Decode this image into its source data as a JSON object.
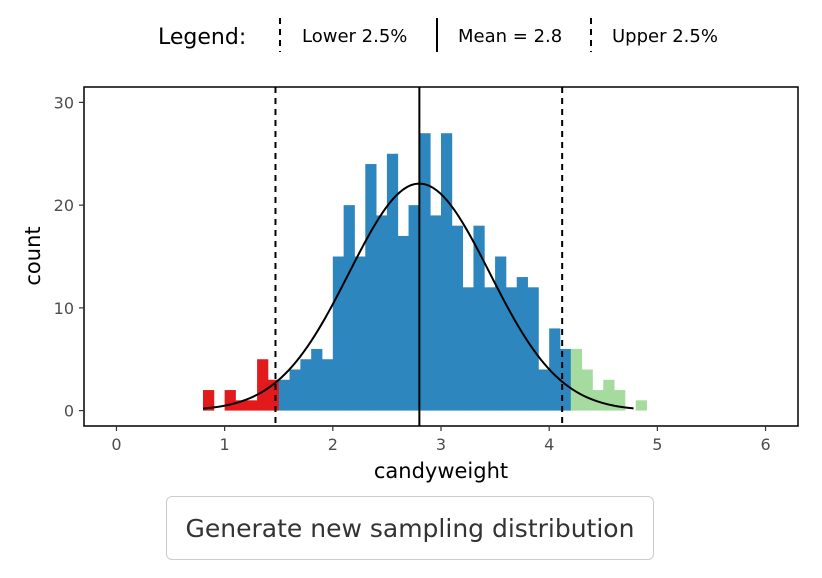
{
  "legend": {
    "title": "Legend:",
    "items": [
      {
        "label": "Lower 2.5%",
        "style": "dashed"
      },
      {
        "label": "Mean = 2.8",
        "style": "solid"
      },
      {
        "label": "Upper 2.5%",
        "style": "dashed"
      }
    ]
  },
  "button": {
    "label": "Generate new sampling distribution"
  },
  "colors": {
    "lower_tail": "#e31a1c",
    "middle": "#2e86bf",
    "upper_tail": "#a6dba0",
    "curve": "#000000"
  },
  "chart_data": {
    "type": "bar",
    "title": "",
    "xlabel": "candyweight",
    "ylabel": "count",
    "xlim": [
      -0.3,
      6.3
    ],
    "ylim": [
      -1.5,
      31.5
    ],
    "xticks": [
      0,
      1,
      2,
      3,
      4,
      5,
      6
    ],
    "yticks": [
      0,
      10,
      20,
      30
    ],
    "bin_width": 0.1,
    "bins": [
      {
        "x": 0.8,
        "count": 2,
        "group": "lower"
      },
      {
        "x": 0.9,
        "count": 0,
        "group": "lower"
      },
      {
        "x": 1.0,
        "count": 2,
        "group": "lower"
      },
      {
        "x": 1.1,
        "count": 1,
        "group": "lower"
      },
      {
        "x": 1.2,
        "count": 1,
        "group": "lower"
      },
      {
        "x": 1.3,
        "count": 5,
        "group": "lower"
      },
      {
        "x": 1.4,
        "count": 3,
        "group": "lower"
      },
      {
        "x": 1.5,
        "count": 3,
        "group": "middle"
      },
      {
        "x": 1.6,
        "count": 4,
        "group": "middle"
      },
      {
        "x": 1.7,
        "count": 5,
        "group": "middle"
      },
      {
        "x": 1.8,
        "count": 6,
        "group": "middle"
      },
      {
        "x": 1.9,
        "count": 5,
        "group": "middle"
      },
      {
        "x": 2.0,
        "count": 15,
        "group": "middle"
      },
      {
        "x": 2.1,
        "count": 20,
        "group": "middle"
      },
      {
        "x": 2.2,
        "count": 15,
        "group": "middle"
      },
      {
        "x": 2.3,
        "count": 24,
        "group": "middle"
      },
      {
        "x": 2.4,
        "count": 19,
        "group": "middle"
      },
      {
        "x": 2.5,
        "count": 25,
        "group": "middle"
      },
      {
        "x": 2.6,
        "count": 17,
        "group": "middle"
      },
      {
        "x": 2.7,
        "count": 20,
        "group": "middle"
      },
      {
        "x": 2.8,
        "count": 27,
        "group": "middle"
      },
      {
        "x": 2.9,
        "count": 19,
        "group": "middle"
      },
      {
        "x": 3.0,
        "count": 27,
        "group": "middle"
      },
      {
        "x": 3.1,
        "count": 18,
        "group": "middle"
      },
      {
        "x": 3.2,
        "count": 12,
        "group": "middle"
      },
      {
        "x": 3.3,
        "count": 18,
        "group": "middle"
      },
      {
        "x": 3.4,
        "count": 12,
        "group": "middle"
      },
      {
        "x": 3.5,
        "count": 15,
        "group": "middle"
      },
      {
        "x": 3.6,
        "count": 12,
        "group": "middle"
      },
      {
        "x": 3.7,
        "count": 13,
        "group": "middle"
      },
      {
        "x": 3.8,
        "count": 12,
        "group": "middle"
      },
      {
        "x": 3.9,
        "count": 4,
        "group": "middle"
      },
      {
        "x": 4.0,
        "count": 8,
        "group": "middle"
      },
      {
        "x": 4.1,
        "count": 6,
        "group": "middle"
      },
      {
        "x": 4.2,
        "count": 6,
        "group": "upper"
      },
      {
        "x": 4.3,
        "count": 4,
        "group": "upper"
      },
      {
        "x": 4.4,
        "count": 2,
        "group": "upper"
      },
      {
        "x": 4.5,
        "count": 3,
        "group": "upper"
      },
      {
        "x": 4.6,
        "count": 2,
        "group": "upper"
      },
      {
        "x": 4.7,
        "count": 0,
        "group": "upper"
      },
      {
        "x": 4.8,
        "count": 1,
        "group": "upper"
      }
    ],
    "normal_curve": {
      "mean": 2.8,
      "sd": 0.65,
      "peak": 22.1,
      "x_range": [
        0.8,
        4.78
      ]
    },
    "vlines": [
      {
        "x": 1.47,
        "style": "dashed"
      },
      {
        "x": 2.8,
        "style": "solid"
      },
      {
        "x": 4.12,
        "style": "dashed"
      }
    ]
  }
}
